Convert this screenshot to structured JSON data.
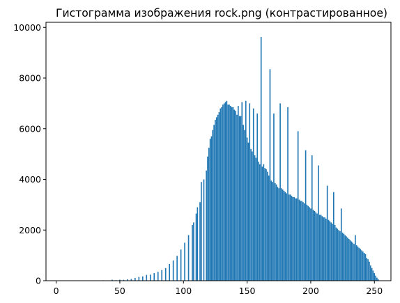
{
  "chart_data": {
    "type": "bar",
    "title": "Гистограмма изображения rock.png (контрастированное)",
    "xlabel": "",
    "ylabel": "",
    "xlim": [
      -8,
      263
    ],
    "ylim": [
      0,
      10200
    ],
    "xticks": [
      0,
      50,
      100,
      150,
      200,
      250
    ],
    "yticks": [
      0,
      2000,
      4000,
      6000,
      8000,
      10000
    ],
    "bar_color": "#1f77b4",
    "grid": false,
    "series": [
      {
        "values": [
          [
            0,
            4
          ],
          [
            37,
            18
          ],
          [
            40,
            12
          ],
          [
            44,
            40
          ],
          [
            47,
            22
          ],
          [
            50,
            40
          ],
          [
            53,
            35
          ],
          [
            56,
            55
          ],
          [
            59,
            70
          ],
          [
            62,
            110
          ],
          [
            65,
            150
          ],
          [
            68,
            170
          ],
          [
            71,
            230
          ],
          [
            74,
            240
          ],
          [
            77,
            300
          ],
          [
            80,
            350
          ],
          [
            83,
            420
          ],
          [
            86,
            500
          ],
          [
            89,
            660
          ],
          [
            92,
            800
          ],
          [
            95,
            980
          ],
          [
            98,
            1230
          ],
          [
            101,
            1500
          ],
          [
            104,
            1800
          ],
          [
            107,
            2200
          ],
          [
            110,
            2650
          ],
          [
            113,
            3100
          ],
          [
            116,
            3550
          ],
          [
            119,
            4050
          ],
          [
            122,
            4500
          ],
          [
            125,
            4950
          ],
          [
            128,
            5350
          ],
          [
            131,
            5750
          ],
          [
            134,
            6100
          ],
          [
            137,
            6450
          ],
          [
            140,
            6750
          ],
          [
            143,
            6900
          ],
          [
            146,
            7050
          ],
          [
            149,
            7100
          ],
          [
            152,
            7000
          ],
          [
            155,
            6800
          ],
          [
            158,
            6600
          ],
          [
            161,
            6350
          ],
          [
            108,
            2300
          ],
          [
            111,
            2900
          ],
          [
            114,
            3900
          ],
          [
            116,
            4000
          ],
          [
            118,
            4350
          ],
          [
            119,
            4900
          ],
          [
            120,
            5250
          ],
          [
            121,
            5600
          ],
          [
            122,
            5700
          ],
          [
            123,
            5950
          ],
          [
            124,
            6150
          ],
          [
            125,
            6350
          ],
          [
            126,
            6450
          ],
          [
            127,
            6550
          ],
          [
            128,
            6650
          ],
          [
            129,
            6800
          ],
          [
            130,
            6850
          ],
          [
            131,
            6950
          ],
          [
            132,
            7000
          ],
          [
            133,
            7050
          ],
          [
            134,
            7100
          ],
          [
            135,
            6950
          ],
          [
            136,
            6950
          ],
          [
            137,
            6900
          ],
          [
            138,
            6850
          ],
          [
            139,
            6850
          ],
          [
            140,
            6700
          ],
          [
            141,
            6700
          ],
          [
            142,
            6550
          ],
          [
            143,
            6450
          ],
          [
            144,
            6500
          ],
          [
            145,
            6500
          ],
          [
            146,
            6350
          ],
          [
            147,
            6150
          ],
          [
            148,
            5950
          ],
          [
            149,
            5800
          ],
          [
            150,
            5650
          ],
          [
            151,
            5450
          ],
          [
            152,
            5300
          ],
          [
            153,
            5200
          ],
          [
            154,
            5100
          ],
          [
            155,
            5050
          ],
          [
            156,
            4950
          ],
          [
            157,
            4850
          ],
          [
            158,
            4750
          ],
          [
            159,
            4700
          ],
          [
            160,
            4600
          ],
          [
            161,
            9620
          ],
          [
            162,
            4500
          ],
          [
            163,
            4600
          ],
          [
            164,
            4450
          ],
          [
            165,
            4400
          ],
          [
            166,
            4300
          ],
          [
            167,
            4150
          ],
          [
            168,
            8350
          ],
          [
            169,
            3950
          ],
          [
            170,
            3900
          ],
          [
            171,
            6600
          ],
          [
            172,
            3850
          ],
          [
            173,
            3800
          ],
          [
            174,
            3700
          ],
          [
            175,
            3650
          ],
          [
            176,
            7000
          ],
          [
            177,
            3650
          ],
          [
            178,
            3600
          ],
          [
            179,
            3550
          ],
          [
            180,
            3500
          ],
          [
            181,
            3450
          ],
          [
            182,
            6850
          ],
          [
            183,
            3400
          ],
          [
            184,
            3400
          ],
          [
            185,
            3350
          ],
          [
            186,
            3300
          ],
          [
            187,
            3300
          ],
          [
            188,
            3250
          ],
          [
            189,
            3250
          ],
          [
            190,
            5900
          ],
          [
            191,
            3200
          ],
          [
            192,
            3150
          ],
          [
            193,
            3150
          ],
          [
            194,
            3100
          ],
          [
            195,
            3050
          ],
          [
            196,
            5150
          ],
          [
            197,
            3000
          ],
          [
            198,
            2950
          ],
          [
            199,
            2900
          ],
          [
            200,
            2850
          ],
          [
            201,
            4950
          ],
          [
            202,
            2800
          ],
          [
            203,
            2750
          ],
          [
            204,
            2700
          ],
          [
            205,
            2650
          ],
          [
            206,
            4550
          ],
          [
            207,
            2600
          ],
          [
            208,
            2600
          ],
          [
            209,
            2550
          ],
          [
            210,
            2500
          ],
          [
            211,
            2500
          ],
          [
            212,
            2450
          ],
          [
            213,
            3750
          ],
          [
            214,
            2400
          ],
          [
            215,
            2350
          ],
          [
            216,
            2300
          ],
          [
            217,
            2250
          ],
          [
            218,
            3500
          ],
          [
            219,
            2200
          ],
          [
            220,
            2100
          ],
          [
            221,
            2050
          ],
          [
            222,
            2000
          ],
          [
            223,
            1950
          ],
          [
            224,
            2850
          ],
          [
            225,
            1900
          ],
          [
            226,
            1850
          ],
          [
            227,
            1800
          ],
          [
            228,
            1750
          ],
          [
            229,
            1700
          ],
          [
            230,
            1650
          ],
          [
            231,
            1600
          ],
          [
            232,
            1550
          ],
          [
            233,
            1500
          ],
          [
            234,
            1450
          ],
          [
            235,
            1800
          ],
          [
            236,
            1400
          ],
          [
            237,
            1350
          ],
          [
            238,
            1300
          ],
          [
            239,
            1250
          ],
          [
            240,
            1200
          ],
          [
            241,
            1150
          ],
          [
            242,
            1100
          ],
          [
            243,
            1050
          ],
          [
            244,
            900
          ],
          [
            245,
            850
          ],
          [
            246,
            750
          ],
          [
            247,
            600
          ],
          [
            248,
            500
          ],
          [
            249,
            400
          ],
          [
            250,
            300
          ],
          [
            251,
            200
          ],
          [
            252,
            120
          ],
          [
            253,
            60
          ]
        ]
      }
    ]
  }
}
